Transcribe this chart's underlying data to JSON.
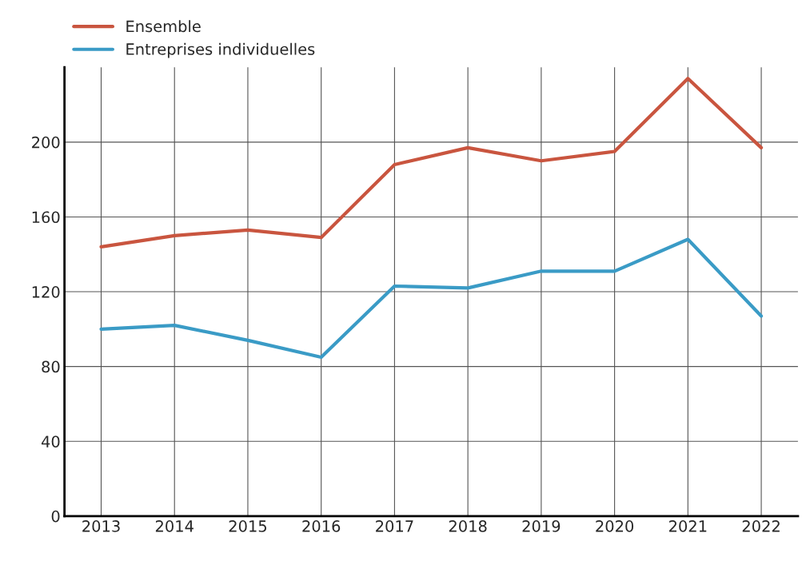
{
  "chart_data": {
    "type": "line",
    "categories": [
      "2013",
      "2014",
      "2015",
      "2016",
      "2017",
      "2018",
      "2019",
      "2020",
      "2021",
      "2022"
    ],
    "series": [
      {
        "name": "Ensemble",
        "color": "#c9553f",
        "values": [
          144,
          150,
          153,
          149,
          188,
          197,
          190,
          195,
          234,
          197
        ]
      },
      {
        "name": "Entreprises individuelles",
        "color": "#3a9bc6",
        "values": [
          100,
          102,
          94,
          85,
          123,
          122,
          131,
          131,
          148,
          107
        ]
      }
    ],
    "ylim": [
      0,
      240
    ],
    "yticks": [
      0,
      40,
      80,
      120,
      160,
      200
    ],
    "grid": true,
    "legend": "top left",
    "marker": "none",
    "line_style": "solid"
  }
}
